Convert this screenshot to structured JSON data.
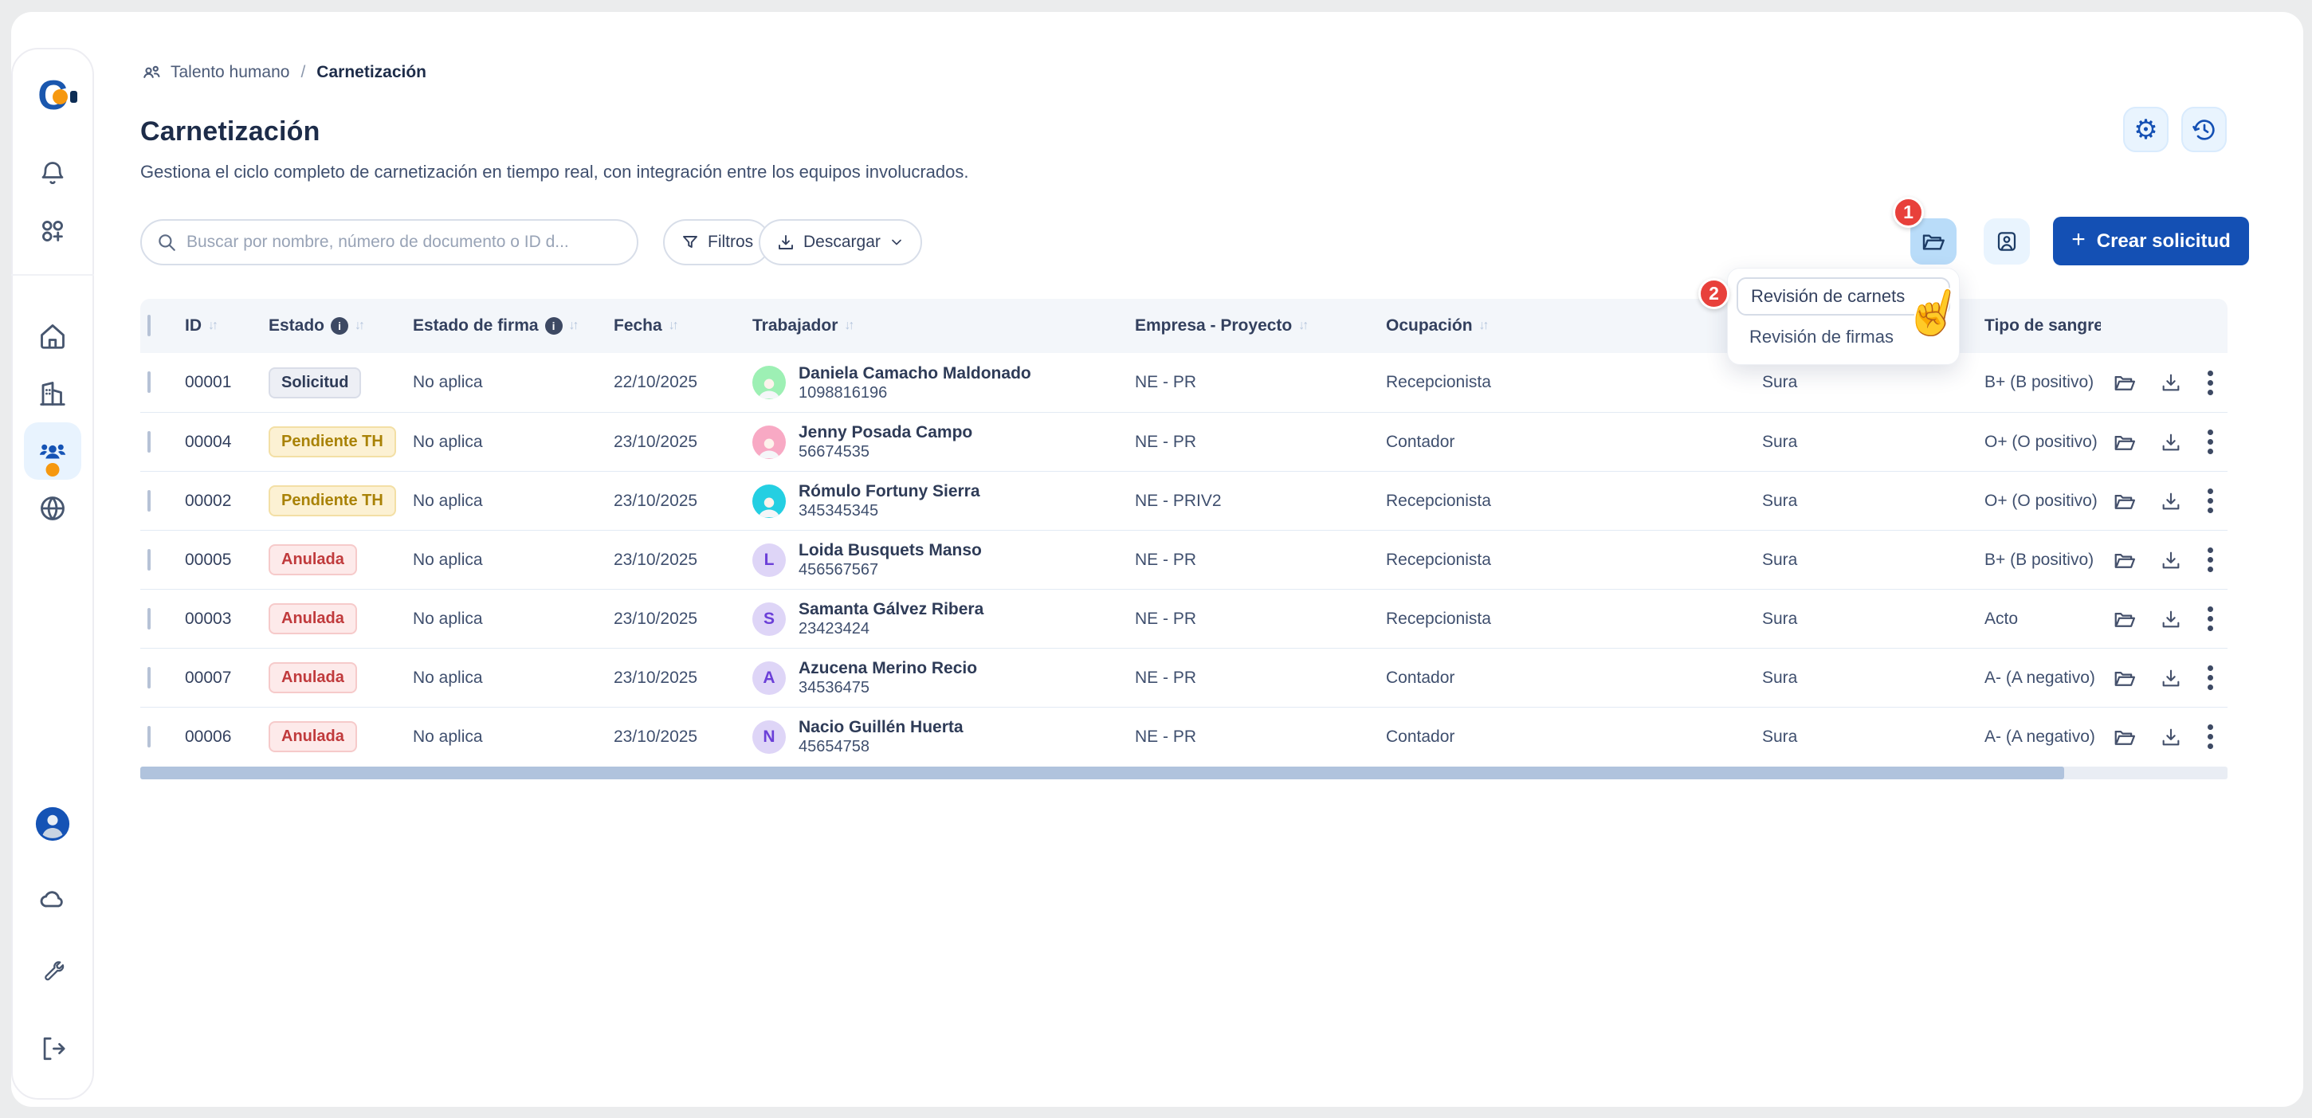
{
  "theme": {
    "accent": "#1450b4",
    "badge_red": "#e8403b",
    "active_tool_bg": "#b9dcf9",
    "light_tool_bg": "#e9f4fe",
    "header_bg": "#f3f6fa",
    "scrollbar_thumb": "#b0c3dd"
  },
  "sidebar": {
    "top_icons": [
      "logo",
      "bell-icon",
      "apps-icon"
    ],
    "nav_icons": [
      "home-icon",
      "building-icon",
      "people-icon",
      "globe-icon"
    ],
    "active_nav": "people-icon",
    "bottom_icons": [
      "avatar",
      "cloud-icon",
      "wrench-icon",
      "logout-icon"
    ]
  },
  "breadcrumb": {
    "section": "Talento humano",
    "separator": "/",
    "current": "Carnetización"
  },
  "header": {
    "title": "Carnetización",
    "subtitle": "Gestiona el ciclo completo de carnetización en tiempo real, con integración entre los equipos involucrados."
  },
  "toolbar": {
    "search_placeholder": "Buscar por nombre, número de documento o ID d...",
    "filters_label": "Filtros",
    "download_label": "Descargar",
    "create_label": "Crear solicitud",
    "folder_badge": "1",
    "menu_badge": "2"
  },
  "menu": {
    "items": [
      {
        "label": "Revisión de carnets"
      },
      {
        "label": "Revisión de firmas"
      }
    ]
  },
  "table": {
    "columns": [
      {
        "label": "ID",
        "sort": true
      },
      {
        "label": "Estado",
        "info": true,
        "sort": true
      },
      {
        "label": "Estado de firma",
        "info": true,
        "sort": true
      },
      {
        "label": "Fecha",
        "sort": true
      },
      {
        "label": "Trabajador",
        "sort": true
      },
      {
        "label": "Empresa - Proyecto",
        "sort": true
      },
      {
        "label": "Ocupación",
        "sort": true
      },
      {
        "label": ""
      },
      {
        "label": "Tipo de sangre"
      }
    ],
    "rows": [
      {
        "id": "00001",
        "estado": "Solicitud",
        "estado_type": "gray",
        "firma": "No aplica",
        "fecha": "22/10/2025",
        "nombre": "Daniela Camacho Maldonado",
        "documento": "1098816196",
        "avatar": {
          "kind": "photo",
          "bg": "#9df0b4"
        },
        "empresa": "NE - PR",
        "ocupacion": "Recepcionista",
        "eps": "Sura",
        "sangre": "B+ (B positivo)"
      },
      {
        "id": "00004",
        "estado": "Pendiente TH",
        "estado_type": "yellow",
        "firma": "No aplica",
        "fecha": "23/10/2025",
        "nombre": "Jenny Posada Campo",
        "documento": "56674535",
        "avatar": {
          "kind": "photo",
          "bg": "#f8a9c4"
        },
        "empresa": "NE - PR",
        "ocupacion": "Contador",
        "eps": "Sura",
        "sangre": "O+ (O positivo)"
      },
      {
        "id": "00002",
        "estado": "Pendiente TH",
        "estado_type": "yellow",
        "firma": "No aplica",
        "fecha": "23/10/2025",
        "nombre": "Rómulo Fortuny Sierra",
        "documento": "345345345",
        "avatar": {
          "kind": "photo",
          "bg": "#24cfe2"
        },
        "empresa": "NE - PRIV2",
        "ocupacion": "Recepcionista",
        "eps": "Sura",
        "sangre": "O+ (O positivo)"
      },
      {
        "id": "00005",
        "estado": "Anulada",
        "estado_type": "red",
        "firma": "No aplica",
        "fecha": "23/10/2025",
        "nombre": "Loida Busquets Manso",
        "documento": "456567567",
        "avatar": {
          "kind": "letter",
          "bg": "#ded5f7",
          "letter": "L",
          "letter_color": "#6b3fd8"
        },
        "empresa": "NE - PR",
        "ocupacion": "Recepcionista",
        "eps": "Sura",
        "sangre": "B+ (B positivo)"
      },
      {
        "id": "00003",
        "estado": "Anulada",
        "estado_type": "red",
        "firma": "No aplica",
        "fecha": "23/10/2025",
        "nombre": "Samanta Gálvez Ribera",
        "documento": "23423424",
        "avatar": {
          "kind": "letter",
          "bg": "#ded5f7",
          "letter": "S",
          "letter_color": "#6b3fd8"
        },
        "empresa": "NE - PR",
        "ocupacion": "Recepcionista",
        "eps": "Sura",
        "sangre": "Acto"
      },
      {
        "id": "00007",
        "estado": "Anulada",
        "estado_type": "red",
        "firma": "No aplica",
        "fecha": "23/10/2025",
        "nombre": "Azucena Merino Recio",
        "documento": "34536475",
        "avatar": {
          "kind": "letter",
          "bg": "#ded5f7",
          "letter": "A",
          "letter_color": "#6b3fd8"
        },
        "empresa": "NE - PR",
        "ocupacion": "Contador",
        "eps": "Sura",
        "sangre": "A- (A negativo)"
      },
      {
        "id": "00006",
        "estado": "Anulada",
        "estado_type": "red",
        "firma": "No aplica",
        "fecha": "23/10/2025",
        "nombre": "Nacio Guillén Huerta",
        "documento": "45654758",
        "avatar": {
          "kind": "letter",
          "bg": "#ded5f7",
          "letter": "N",
          "letter_color": "#6b3fd8"
        },
        "empresa": "NE - PR",
        "ocupacion": "Contador",
        "eps": "Sura",
        "sangre": "A- (A negativo)"
      }
    ]
  }
}
